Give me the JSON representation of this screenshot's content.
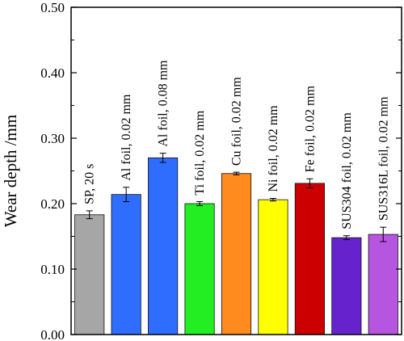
{
  "chart_data": {
    "type": "bar",
    "ylabel": "Wear depth /mm",
    "xlabel": "",
    "ylim": [
      0,
      0.5
    ],
    "yticks": [
      "0.00",
      "0.10",
      "0.20",
      "0.30",
      "0.40",
      "0.50"
    ],
    "grid": false,
    "categories": [
      "SP, 20 s",
      "Al foil, 0.02 mm",
      "Al foil, 0.08 mm",
      "Ti foil, 0.02 mm",
      "Cu foil, 0.02 mm",
      "Ni foil, 0.02 mm",
      "Fe foil, 0.02 mm",
      "SUS304 foil, 0.02 mm",
      "SUS316L foil, 0.02 mm"
    ],
    "values": [
      0.183,
      0.214,
      0.27,
      0.2,
      0.246,
      0.206,
      0.231,
      0.148,
      0.153
    ],
    "errors": [
      0.006,
      0.011,
      0.007,
      0.003,
      0.002,
      0.002,
      0.007,
      0.003,
      0.011
    ],
    "colors": [
      "#a6a6a6",
      "#2f6dff",
      "#2f6dff",
      "#22ee22",
      "#ff8a1e",
      "#ffff00",
      "#cc0000",
      "#6622cc",
      "#b655e0"
    ]
  }
}
